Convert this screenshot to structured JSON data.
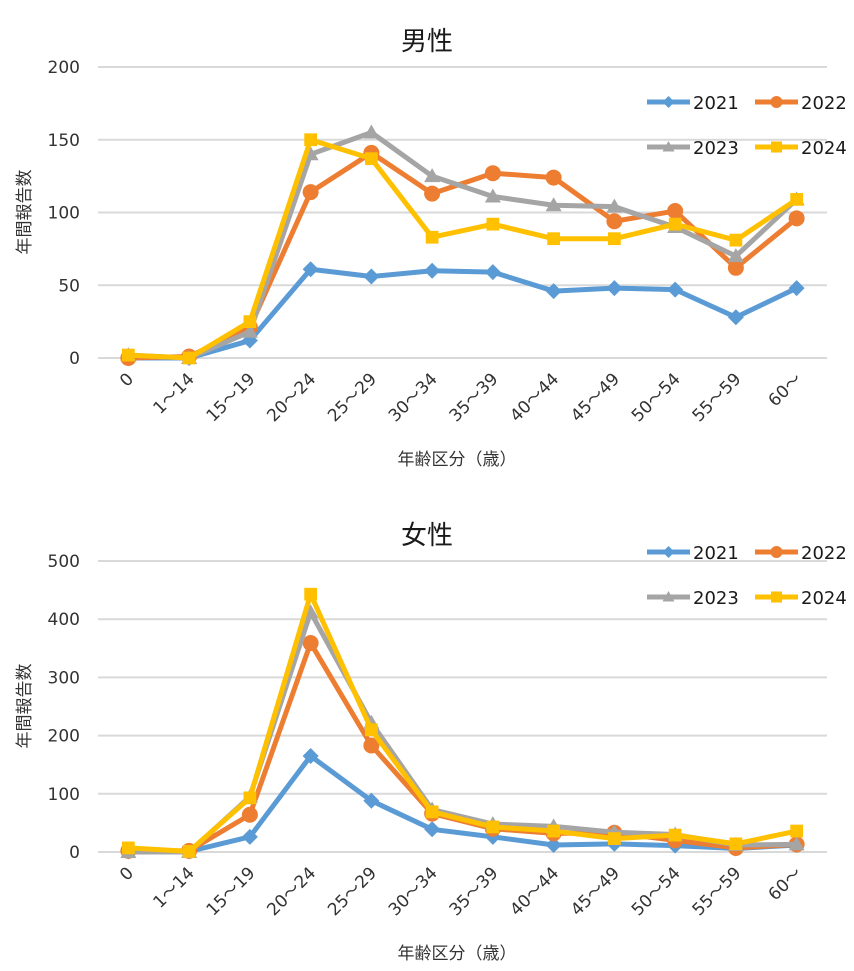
{
  "colors": {
    "2021": "#5b9bd5",
    "2022": "#ed7d31",
    "2023": "#a5a5a5",
    "2024": "#ffc000",
    "grid": "#d9d9d9"
  },
  "chart_data": [
    {
      "type": "line",
      "title": "男性",
      "xlabel": "年齢区分（歳）",
      "ylabel": "年間報告数",
      "ylim": [
        0,
        200
      ],
      "yticks": [
        0,
        50,
        100,
        150,
        200
      ],
      "ytick_labels": [
        "0",
        "50",
        "100",
        "150",
        "200"
      ],
      "grid": true,
      "legend_position": "top-right",
      "categories": [
        "0",
        "1～14",
        "15～19",
        "20～24",
        "25～29",
        "30～34",
        "35～39",
        "40～44",
        "45～49",
        "50～54",
        "55～59",
        "60～"
      ],
      "series": [
        {
          "name": "2021",
          "marker": "diamond",
          "values": [
            0,
            0,
            12,
            61,
            56,
            60,
            59,
            46,
            48,
            47,
            28,
            48
          ]
        },
        {
          "name": "2022",
          "marker": "circle",
          "values": [
            0,
            1,
            21,
            114,
            141,
            113,
            127,
            124,
            94,
            101,
            62,
            96
          ]
        },
        {
          "name": "2023",
          "marker": "triangle",
          "values": [
            2,
            0,
            18,
            140,
            155,
            125,
            111,
            105,
            104,
            90,
            70,
            109
          ]
        },
        {
          "name": "2024",
          "marker": "square",
          "values": [
            2,
            0,
            25,
            150,
            137,
            83,
            92,
            82,
            82,
            92,
            81,
            109
          ]
        }
      ]
    },
    {
      "type": "line",
      "title": "女性",
      "xlabel": "年齢区分（歳）",
      "ylabel": "年間報告数",
      "ylim": [
        0,
        500
      ],
      "yticks": [
        0,
        100,
        200,
        300,
        400,
        500
      ],
      "ytick_labels": [
        "0",
        "100",
        "200",
        "300",
        "400",
        "500"
      ],
      "grid": true,
      "legend_position": "top-right",
      "categories": [
        "0",
        "1～14",
        "15～19",
        "20～24",
        "25～29",
        "30～34",
        "35～39",
        "40～44",
        "45～49",
        "50～54",
        "55～59",
        "60～"
      ],
      "series": [
        {
          "name": "2021",
          "marker": "diamond",
          "values": [
            1,
            1,
            26,
            165,
            88,
            39,
            26,
            12,
            14,
            11,
            6,
            12
          ]
        },
        {
          "name": "2022",
          "marker": "circle",
          "values": [
            2,
            2,
            64,
            359,
            183,
            66,
            40,
            32,
            33,
            20,
            7,
            13
          ]
        },
        {
          "name": "2023",
          "marker": "triangle",
          "values": [
            0,
            0,
            95,
            412,
            222,
            73,
            48,
            44,
            34,
            30,
            12,
            13
          ]
        },
        {
          "name": "2024",
          "marker": "square",
          "values": [
            7,
            1,
            93,
            443,
            210,
            69,
            43,
            36,
            23,
            29,
            14,
            36
          ]
        }
      ]
    }
  ]
}
